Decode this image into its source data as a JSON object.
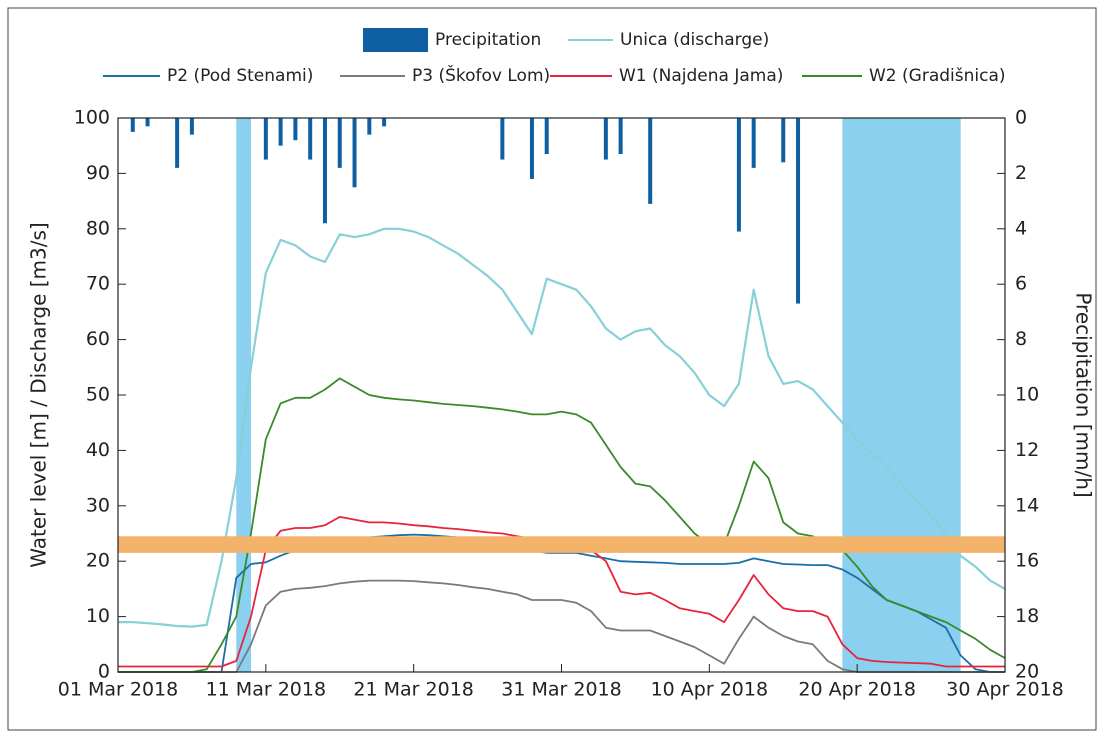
{
  "chart_data": {
    "type": "line",
    "x": [
      "2018-03-01",
      "2018-03-02",
      "2018-03-03",
      "2018-03-04",
      "2018-03-05",
      "2018-03-06",
      "2018-03-07",
      "2018-03-08",
      "2018-03-09",
      "2018-03-10",
      "2018-03-11",
      "2018-03-12",
      "2018-03-13",
      "2018-03-14",
      "2018-03-15",
      "2018-03-16",
      "2018-03-17",
      "2018-03-18",
      "2018-03-19",
      "2018-03-20",
      "2018-03-21",
      "2018-03-22",
      "2018-03-23",
      "2018-03-24",
      "2018-03-25",
      "2018-03-26",
      "2018-03-27",
      "2018-03-28",
      "2018-03-29",
      "2018-03-30",
      "2018-03-31",
      "2018-04-01",
      "2018-04-02",
      "2018-04-03",
      "2018-04-04",
      "2018-04-05",
      "2018-04-06",
      "2018-04-07",
      "2018-04-08",
      "2018-04-09",
      "2018-04-10",
      "2018-04-11",
      "2018-04-12",
      "2018-04-13",
      "2018-04-14",
      "2018-04-15",
      "2018-04-16",
      "2018-04-17",
      "2018-04-18",
      "2018-04-19",
      "2018-04-20",
      "2018-04-21",
      "2018-04-22",
      "2018-04-23",
      "2018-04-24",
      "2018-04-25",
      "2018-04-26",
      "2018-04-27",
      "2018-04-28",
      "2018-04-29",
      "2018-04-30"
    ],
    "series": [
      {
        "name": "Precipitation",
        "type": "bar",
        "axis": "y2",
        "color": "#0f5fa3",
        "values": [
          0,
          0.5,
          0.3,
          0,
          1.8,
          0.6,
          0,
          0,
          0,
          0,
          1.5,
          1.0,
          0.8,
          1.5,
          3.8,
          1.8,
          2.5,
          0.6,
          0.3,
          0,
          0,
          0,
          0,
          0,
          0,
          0,
          1.5,
          0,
          2.2,
          1.3,
          0,
          0,
          0,
          1.5,
          1.3,
          0,
          3.1,
          0,
          0,
          0,
          0,
          0,
          4.1,
          1.8,
          0,
          1.6,
          6.7,
          0,
          0,
          0,
          0,
          0,
          0,
          0,
          0,
          0,
          0,
          0,
          0,
          0,
          0
        ]
      },
      {
        "name": "Unica (discharge)",
        "type": "line",
        "color": "#86d0d8",
        "values": [
          9,
          9,
          8.8,
          8.6,
          8.3,
          8.2,
          8.5,
          20,
          35,
          55,
          72,
          78,
          77,
          75,
          74,
          79,
          78.5,
          79,
          80,
          80,
          79.5,
          78.5,
          77,
          75.5,
          73.5,
          71.5,
          69,
          65,
          61,
          71,
          70,
          69,
          66,
          62,
          60,
          61.5,
          62,
          59,
          57,
          54,
          50,
          48,
          52,
          69,
          57,
          52,
          52.5,
          51,
          48,
          45,
          42,
          39.5,
          37,
          34,
          31,
          28,
          25,
          21,
          19,
          16.5,
          15
        ]
      },
      {
        "name": "P2 (Pod Stenami)",
        "type": "line",
        "color": "#1a6fa8",
        "values": [
          0,
          0,
          0,
          0,
          0,
          0,
          0,
          0,
          17,
          19.5,
          19.8,
          21,
          22,
          23,
          23.3,
          23.5,
          24,
          24.3,
          24.5,
          24.7,
          24.8,
          24.7,
          24.5,
          24.3,
          24.1,
          24,
          23,
          22.5,
          22,
          21.5,
          21.5,
          21.5,
          21,
          20.5,
          20,
          19.9,
          19.8,
          19.7,
          19.5,
          19.5,
          19.5,
          19.5,
          19.7,
          20.5,
          20,
          19.5,
          19.4,
          19.3,
          19.3,
          18.5,
          17,
          15,
          13,
          12,
          11,
          9.5,
          8,
          3,
          0.5,
          0,
          0
        ]
      },
      {
        "name": "P3 (Škofov Lom)",
        "type": "line",
        "color": "#7a7a7a",
        "values": [
          0,
          0,
          0,
          0,
          0,
          0,
          0,
          0,
          0,
          5,
          12,
          14.5,
          15,
          15.2,
          15.5,
          16,
          16.3,
          16.5,
          16.5,
          16.5,
          16.4,
          16.2,
          16,
          15.7,
          15.3,
          15,
          14.5,
          14,
          13,
          13,
          13,
          12.5,
          11,
          8,
          7.5,
          7.5,
          7.5,
          6.5,
          5.5,
          4.5,
          3,
          1.5,
          6,
          10,
          8,
          6.5,
          5.5,
          5,
          2,
          0.5,
          0,
          0,
          0,
          0,
          0,
          0,
          0,
          0,
          0,
          0,
          0
        ]
      },
      {
        "name": "W1 (Najdena Jama)",
        "type": "line",
        "color": "#e8243c",
        "values": [
          1,
          1,
          1,
          1,
          1,
          1,
          1,
          1,
          2,
          10,
          22,
          25.5,
          26,
          26,
          26.5,
          28,
          27.5,
          27,
          27,
          26.8,
          26.5,
          26.3,
          26,
          25.8,
          25.5,
          25.2,
          25,
          24.5,
          24,
          24,
          24,
          23.5,
          22,
          20,
          14.5,
          14,
          14.3,
          13,
          11.5,
          11,
          10.5,
          9,
          13,
          17.5,
          14,
          11.5,
          11,
          11,
          10,
          5,
          2.5,
          2,
          1.8,
          1.7,
          1.6,
          1.5,
          1,
          1,
          1,
          1,
          1
        ]
      },
      {
        "name": "W2 (Gradišnica)",
        "type": "line",
        "color": "#3a8a2a",
        "values": [
          0,
          0,
          0,
          0,
          0,
          0,
          0.5,
          5,
          10,
          25,
          42,
          48.5,
          49.5,
          49.5,
          51,
          53,
          51.5,
          50,
          49.5,
          49.2,
          49,
          48.7,
          48.4,
          48.2,
          48,
          47.7,
          47.4,
          47,
          46.5,
          46.5,
          47,
          46.5,
          45,
          41,
          37,
          34,
          33.5,
          31,
          28,
          25,
          23,
          23,
          30,
          38,
          35,
          27,
          25,
          24.5,
          23,
          22,
          19,
          15.5,
          13,
          12,
          11,
          10,
          9,
          7.5,
          6,
          4,
          2.5
        ]
      }
    ],
    "highlight_periods": [
      {
        "start": "2018-03-09",
        "end": "2018-03-10",
        "color": "#8bd0ee"
      },
      {
        "start": "2018-04-19",
        "end": "2018-04-27",
        "color": "#8bd0ee"
      }
    ],
    "band": {
      "from": 21.5,
      "to": 24.5,
      "color": "#f3b36b"
    },
    "xlim": [
      "2018-03-01",
      "2018-04-30"
    ],
    "xticks": [
      {
        "value": "2018-03-01",
        "label": "01 Mar 2018"
      },
      {
        "value": "2018-03-11",
        "label": "11 Mar 2018"
      },
      {
        "value": "2018-03-21",
        "label": "21 Mar 2018"
      },
      {
        "value": "2018-03-31",
        "label": "31 Mar 2018"
      },
      {
        "value": "2018-04-10",
        "label": "10 Apr 2018"
      },
      {
        "value": "2018-04-20",
        "label": "20 Apr 2018"
      },
      {
        "value": "2018-04-30",
        "label": "30 Apr 2018"
      }
    ],
    "ylim": [
      0,
      100
    ],
    "yticks": [
      0,
      10,
      20,
      30,
      40,
      50,
      60,
      70,
      80,
      90,
      100
    ],
    "y2lim": [
      20,
      0
    ],
    "y2ticks": [
      0,
      2,
      4,
      6,
      8,
      10,
      12,
      14,
      16,
      18,
      20
    ],
    "ylabel": "Water level [m] / Discharge [m3/s]",
    "y2label": "Precipitation [mm/h]"
  }
}
